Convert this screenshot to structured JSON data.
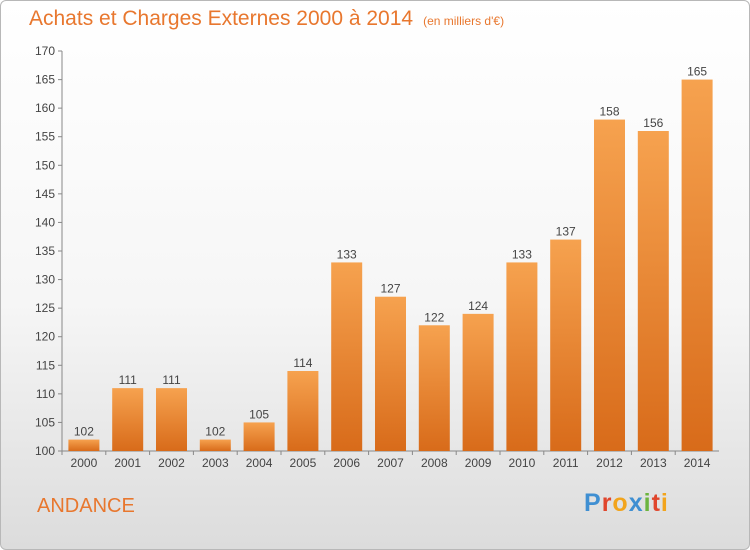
{
  "title": "Achats et Charges Externes 2000 à 2014",
  "unit": "(en milliers d'€)",
  "location": "ANDANCE",
  "brand": {
    "letters": [
      {
        "ch": "P",
        "color": "#3f8fd2"
      },
      {
        "ch": "r",
        "color": "#e0452c"
      },
      {
        "ch": "o",
        "color": "#f2a41c"
      },
      {
        "ch": "x",
        "color": "#3f8fd2"
      },
      {
        "ch": "i",
        "color": "#6cb43f"
      },
      {
        "ch": "t",
        "color": "#e0452c"
      },
      {
        "ch": "i",
        "color": "#f2a41c"
      }
    ]
  },
  "colors": {
    "bar_light": "#f6a24f",
    "bar_dark": "#d86b1a",
    "title": "#e8772e",
    "axis_text": "#444444"
  },
  "chart_data": {
    "type": "bar",
    "categories": [
      "2000",
      "2001",
      "2002",
      "2003",
      "2004",
      "2005",
      "2006",
      "2007",
      "2008",
      "2009",
      "2010",
      "2011",
      "2012",
      "2013",
      "2014"
    ],
    "values": [
      102,
      111,
      111,
      102,
      105,
      114,
      133,
      127,
      122,
      124,
      133,
      137,
      158,
      156,
      165
    ],
    "ylim": [
      100,
      170
    ],
    "yticks": [
      100,
      105,
      110,
      115,
      120,
      125,
      130,
      135,
      140,
      145,
      150,
      155,
      160,
      165,
      170
    ],
    "grid": false,
    "legend": "none"
  }
}
